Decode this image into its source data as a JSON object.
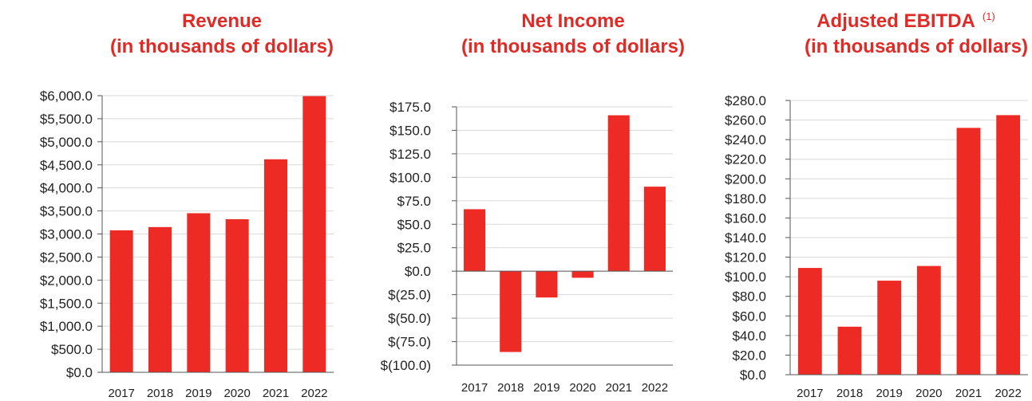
{
  "colors": {
    "bar": "#ee2a24",
    "title": "#e02a26",
    "axis": "#555555",
    "grid": "#d9d9d9"
  },
  "chart_data": [
    {
      "type": "bar",
      "title": "Revenue",
      "subtitle": "(in thousands of dollars)",
      "categories": [
        "2017",
        "2018",
        "2019",
        "2020",
        "2021",
        "2022"
      ],
      "values": [
        3080,
        3150,
        3450,
        3320,
        4620,
        5990
      ],
      "ylim": [
        0,
        6000
      ],
      "yticks": [
        0,
        500,
        1000,
        1500,
        2000,
        2500,
        3000,
        3500,
        4000,
        4500,
        5000,
        5500,
        6000
      ],
      "ytick_labels": [
        "$0.0",
        "$500.0",
        "$1,000.0",
        "$1,500.0",
        "$2,000.0",
        "$2,500.0",
        "$3,000.0",
        "$3,500.0",
        "$4,000.0",
        "$4,500.0",
        "$5,000.0",
        "$5,500.0",
        "$6,000.0"
      ],
      "grid": true
    },
    {
      "type": "bar",
      "title": "Net Income",
      "subtitle": "(in thousands of dollars)",
      "categories": [
        "2017",
        "2018",
        "2019",
        "2020",
        "2021",
        "2022"
      ],
      "values": [
        66,
        -86,
        -28,
        -7,
        166,
        90
      ],
      "ylim": [
        -100,
        175
      ],
      "yticks": [
        -100,
        -75,
        -50,
        -25,
        0,
        25,
        50,
        75,
        100,
        125,
        150,
        175
      ],
      "ytick_labels": [
        "$(100.0)",
        "$(75.0)",
        "$(50.0)",
        "$(25.0)",
        "$0.0",
        "$25.0",
        "$50.0",
        "$75.0",
        "$100.0",
        "$125.0",
        "$150.0",
        "$175.0"
      ],
      "grid": true
    },
    {
      "type": "bar",
      "title": "Adjusted EBITDA",
      "title_superscript": "(1)",
      "subtitle": "(in thousands of dollars)",
      "categories": [
        "2017",
        "2018",
        "2019",
        "2020",
        "2021",
        "2022"
      ],
      "values": [
        109,
        49,
        96,
        111,
        252,
        265
      ],
      "ylim": [
        0,
        280
      ],
      "yticks": [
        0,
        20,
        40,
        60,
        80,
        100,
        120,
        140,
        160,
        180,
        200,
        220,
        240,
        260,
        280
      ],
      "ytick_labels": [
        "$0.0",
        "$20.0",
        "$40.0",
        "$60.0",
        "$80.0",
        "$100.0",
        "$120.0",
        "$140.0",
        "$160.0",
        "$180.0",
        "$200.0",
        "$220.0",
        "$240.0",
        "$260.0",
        "$280.0"
      ],
      "grid": true
    }
  ]
}
